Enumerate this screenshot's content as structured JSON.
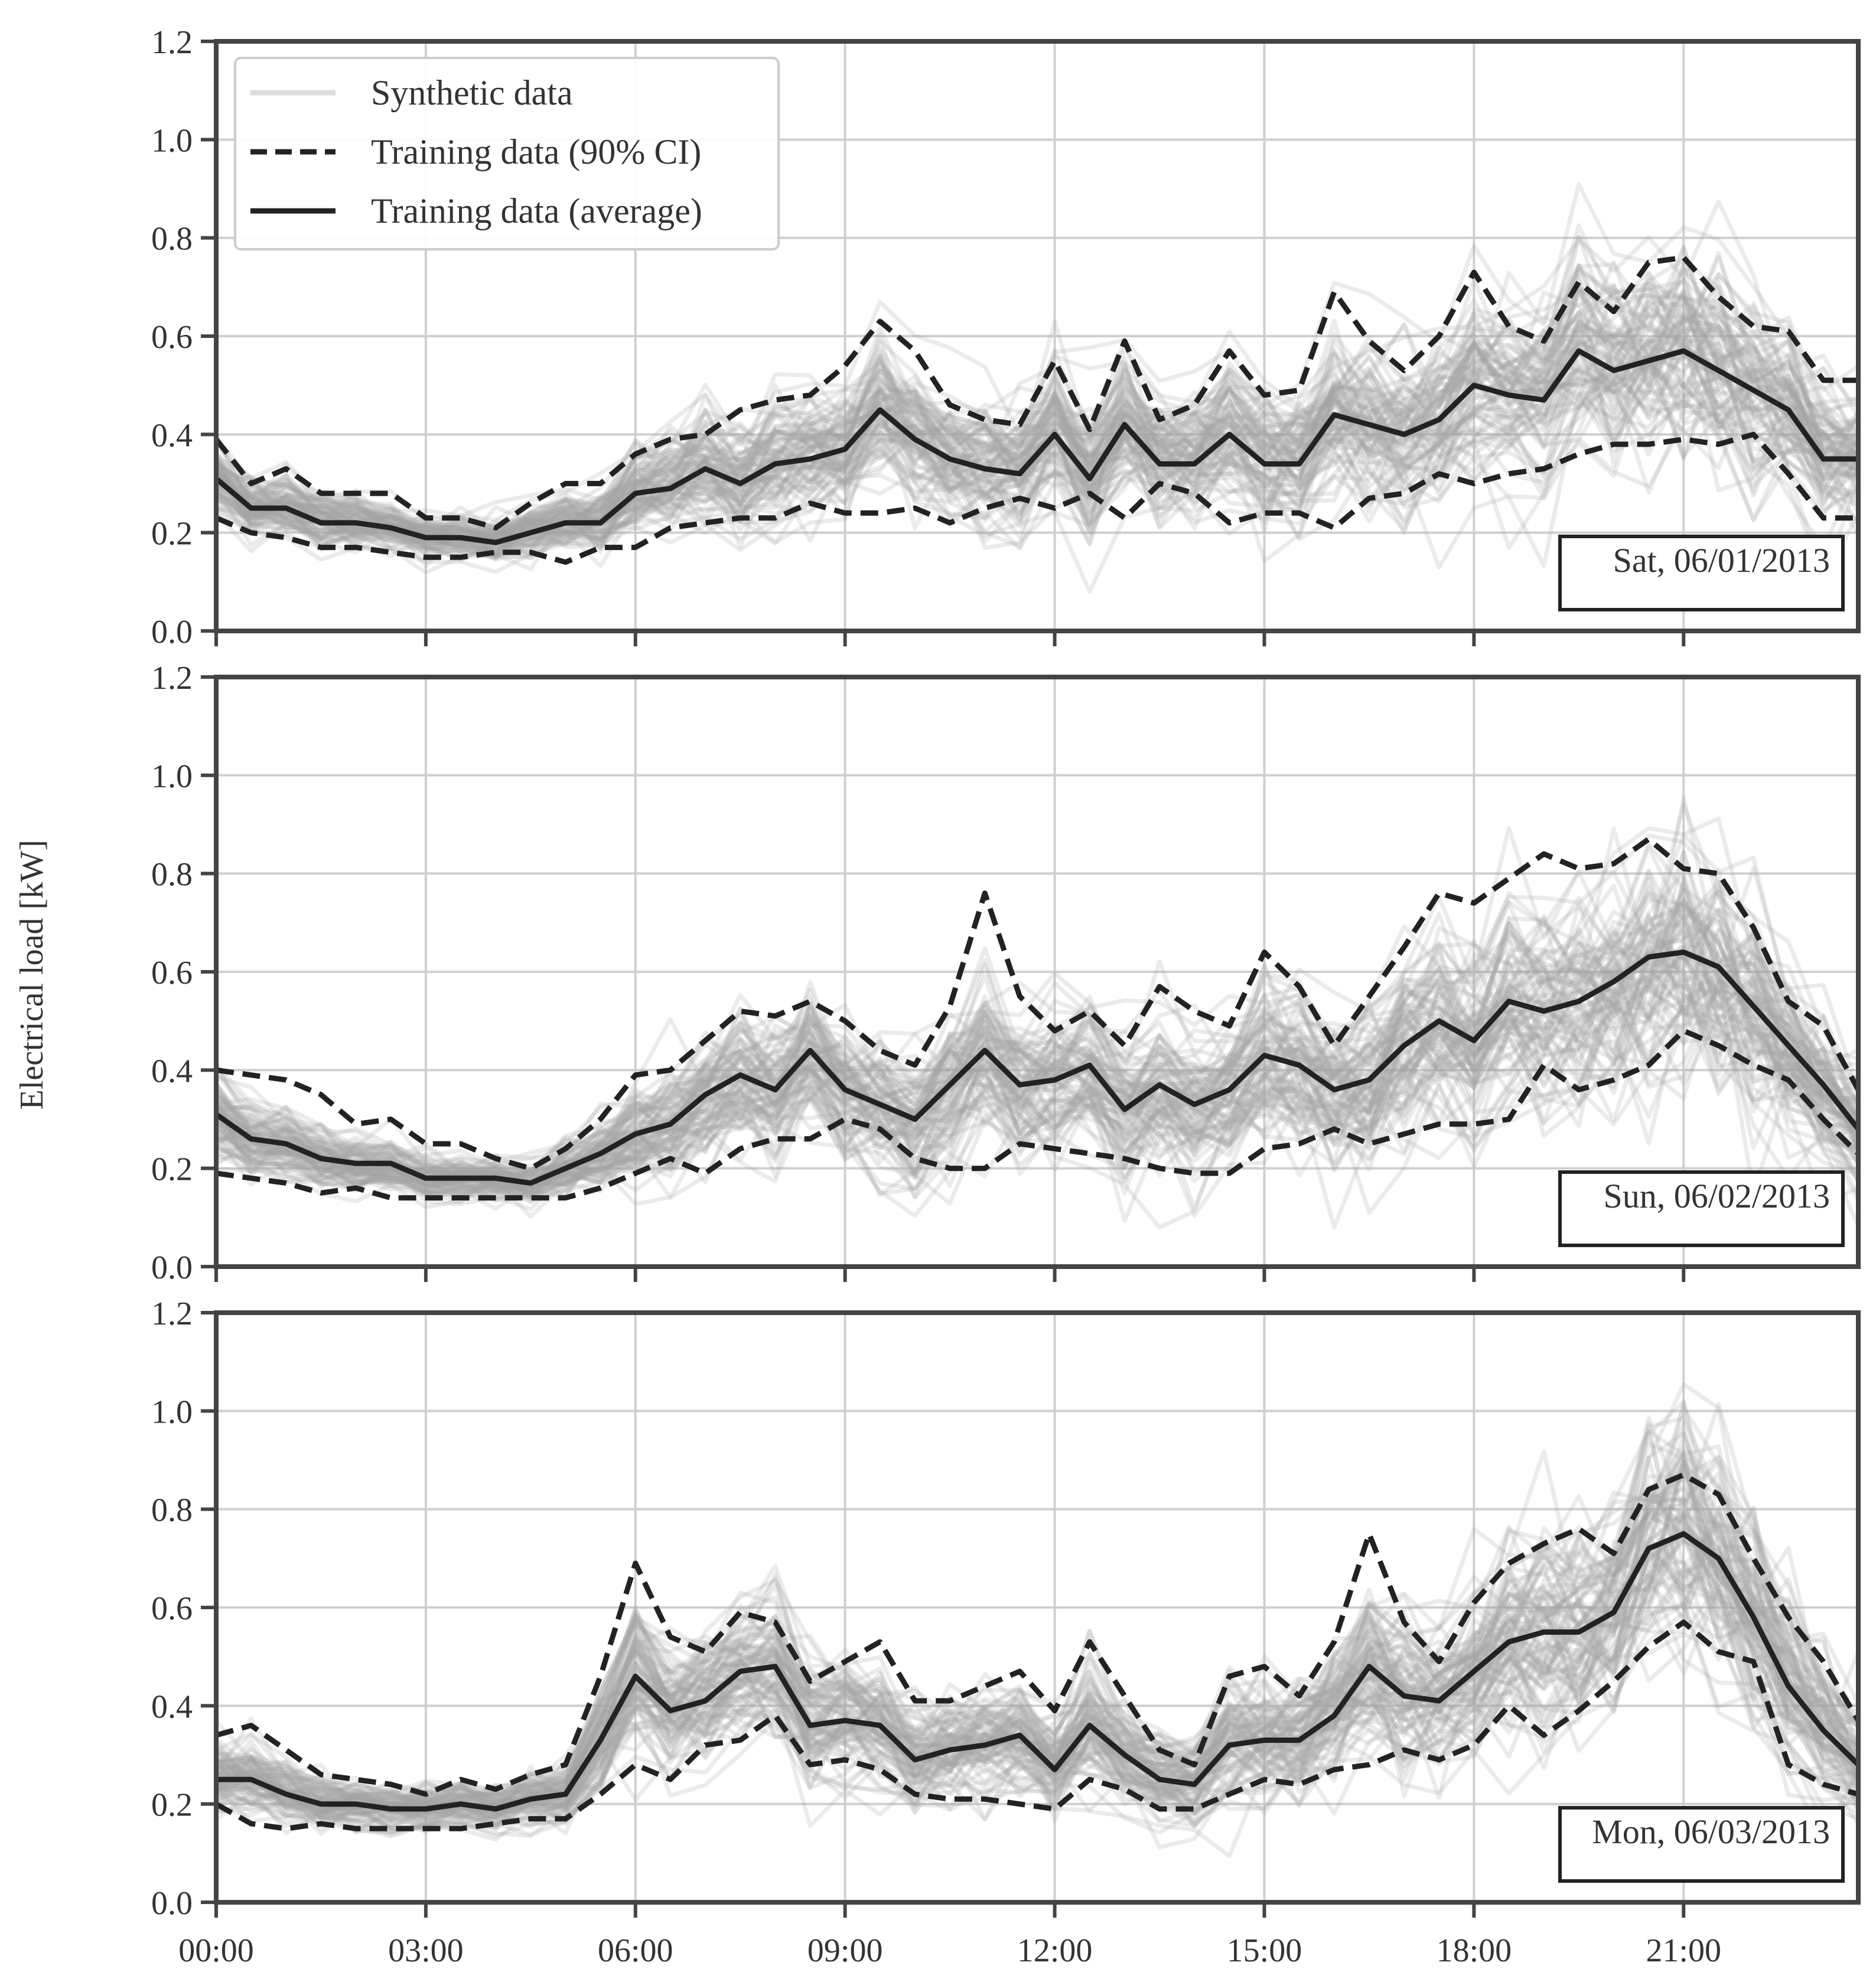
{
  "chart_data": {
    "type": "line",
    "ylabel": "Electrical load [kW]",
    "ylim": [
      0,
      1.2
    ],
    "yticks": [
      "0.0",
      "0.2",
      "0.4",
      "0.6",
      "0.8",
      "1.0",
      "1.2"
    ],
    "xticks": [
      "00:00",
      "03:00",
      "06:00",
      "09:00",
      "12:00",
      "15:00",
      "18:00",
      "21:00"
    ],
    "xlim_hours": [
      0,
      23.5
    ],
    "step_hours": 0.5,
    "legend": {
      "placement": "top-left",
      "entries": [
        {
          "label": "Synthetic data",
          "style": "light-gray-solid"
        },
        {
          "label": "Training data (90% CI)",
          "style": "black-dashed"
        },
        {
          "label": "Training data (average)",
          "style": "black-solid"
        }
      ]
    },
    "colors": {
      "synthetic": "#a3a3a3",
      "training": "#222222",
      "grid": "#cfcfcf",
      "frame": "#444444"
    },
    "panels": [
      {
        "date_label": "Sat, 06/01/2013",
        "average": [
          0.31,
          0.25,
          0.25,
          0.22,
          0.22,
          0.21,
          0.19,
          0.19,
          0.18,
          0.2,
          0.22,
          0.22,
          0.28,
          0.29,
          0.33,
          0.3,
          0.34,
          0.35,
          0.37,
          0.45,
          0.39,
          0.35,
          0.33,
          0.32,
          0.4,
          0.31,
          0.42,
          0.34,
          0.34,
          0.4,
          0.34,
          0.34,
          0.44,
          0.42,
          0.4,
          0.43,
          0.5,
          0.48,
          0.47,
          0.57,
          0.53,
          0.55,
          0.57,
          0.53,
          0.49,
          0.45,
          0.35,
          0.35
        ],
        "ci_upper": [
          0.39,
          0.3,
          0.33,
          0.28,
          0.28,
          0.28,
          0.23,
          0.23,
          0.21,
          0.26,
          0.3,
          0.3,
          0.36,
          0.39,
          0.4,
          0.45,
          0.47,
          0.48,
          0.54,
          0.63,
          0.57,
          0.46,
          0.43,
          0.42,
          0.55,
          0.41,
          0.59,
          0.43,
          0.46,
          0.57,
          0.48,
          0.49,
          0.69,
          0.59,
          0.53,
          0.6,
          0.73,
          0.62,
          0.59,
          0.71,
          0.65,
          0.75,
          0.76,
          0.68,
          0.62,
          0.61,
          0.51,
          0.51
        ],
        "ci_lower": [
          0.23,
          0.2,
          0.19,
          0.17,
          0.17,
          0.16,
          0.15,
          0.15,
          0.16,
          0.16,
          0.14,
          0.17,
          0.17,
          0.21,
          0.22,
          0.23,
          0.23,
          0.26,
          0.24,
          0.24,
          0.25,
          0.22,
          0.25,
          0.27,
          0.25,
          0.28,
          0.23,
          0.3,
          0.28,
          0.22,
          0.24,
          0.24,
          0.21,
          0.27,
          0.28,
          0.32,
          0.3,
          0.32,
          0.33,
          0.36,
          0.38,
          0.38,
          0.39,
          0.38,
          0.4,
          0.32,
          0.23,
          0.23
        ],
        "spread": [
          0.05,
          0.04,
          0.04,
          0.035,
          0.035,
          0.03,
          0.03,
          0.03,
          0.03,
          0.035,
          0.04,
          0.045,
          0.06,
          0.07,
          0.08,
          0.08,
          0.085,
          0.09,
          0.09,
          0.1,
          0.09,
          0.09,
          0.09,
          0.09,
          0.1,
          0.09,
          0.1,
          0.09,
          0.09,
          0.1,
          0.09,
          0.09,
          0.1,
          0.1,
          0.1,
          0.11,
          0.12,
          0.12,
          0.12,
          0.13,
          0.13,
          0.13,
          0.14,
          0.13,
          0.12,
          0.11,
          0.09,
          0.08
        ]
      },
      {
        "date_label": "Sun, 06/02/2013",
        "average": [
          0.31,
          0.26,
          0.25,
          0.22,
          0.21,
          0.21,
          0.18,
          0.18,
          0.18,
          0.17,
          0.2,
          0.23,
          0.27,
          0.29,
          0.35,
          0.39,
          0.36,
          0.44,
          0.36,
          0.33,
          0.3,
          0.37,
          0.44,
          0.37,
          0.38,
          0.41,
          0.32,
          0.37,
          0.33,
          0.36,
          0.43,
          0.41,
          0.36,
          0.38,
          0.45,
          0.5,
          0.46,
          0.54,
          0.52,
          0.54,
          0.58,
          0.63,
          0.64,
          0.61,
          0.53,
          0.45,
          0.37,
          0.28
        ],
        "ci_upper": [
          0.4,
          0.39,
          0.38,
          0.35,
          0.29,
          0.3,
          0.25,
          0.25,
          0.22,
          0.2,
          0.24,
          0.3,
          0.39,
          0.4,
          0.46,
          0.52,
          0.51,
          0.54,
          0.5,
          0.44,
          0.41,
          0.53,
          0.76,
          0.55,
          0.48,
          0.52,
          0.45,
          0.57,
          0.52,
          0.49,
          0.64,
          0.57,
          0.45,
          0.55,
          0.65,
          0.76,
          0.74,
          0.79,
          0.84,
          0.81,
          0.82,
          0.87,
          0.81,
          0.8,
          0.69,
          0.54,
          0.49,
          0.36
        ],
        "ci_lower": [
          0.19,
          0.18,
          0.17,
          0.15,
          0.16,
          0.14,
          0.14,
          0.14,
          0.14,
          0.14,
          0.14,
          0.16,
          0.19,
          0.22,
          0.19,
          0.24,
          0.26,
          0.26,
          0.3,
          0.28,
          0.22,
          0.2,
          0.2,
          0.25,
          0.24,
          0.23,
          0.22,
          0.2,
          0.19,
          0.19,
          0.24,
          0.25,
          0.28,
          0.25,
          0.27,
          0.29,
          0.29,
          0.3,
          0.41,
          0.36,
          0.38,
          0.41,
          0.48,
          0.45,
          0.41,
          0.38,
          0.3,
          0.23
        ],
        "spread": [
          0.06,
          0.05,
          0.045,
          0.04,
          0.035,
          0.035,
          0.03,
          0.03,
          0.03,
          0.03,
          0.035,
          0.045,
          0.06,
          0.07,
          0.08,
          0.09,
          0.09,
          0.1,
          0.09,
          0.09,
          0.09,
          0.1,
          0.11,
          0.1,
          0.1,
          0.1,
          0.1,
          0.1,
          0.1,
          0.1,
          0.11,
          0.11,
          0.1,
          0.11,
          0.12,
          0.13,
          0.13,
          0.14,
          0.14,
          0.14,
          0.15,
          0.16,
          0.16,
          0.15,
          0.14,
          0.12,
          0.1,
          0.08
        ]
      },
      {
        "date_label": "Mon, 06/03/2013",
        "average": [
          0.25,
          0.25,
          0.22,
          0.2,
          0.2,
          0.19,
          0.19,
          0.2,
          0.19,
          0.21,
          0.22,
          0.33,
          0.46,
          0.39,
          0.41,
          0.47,
          0.48,
          0.36,
          0.37,
          0.36,
          0.29,
          0.31,
          0.32,
          0.34,
          0.27,
          0.36,
          0.3,
          0.25,
          0.24,
          0.32,
          0.33,
          0.33,
          0.38,
          0.48,
          0.42,
          0.41,
          0.47,
          0.53,
          0.55,
          0.55,
          0.59,
          0.72,
          0.75,
          0.7,
          0.58,
          0.44,
          0.35,
          0.28
        ],
        "ci_upper": [
          0.34,
          0.36,
          0.31,
          0.26,
          0.25,
          0.24,
          0.22,
          0.25,
          0.23,
          0.26,
          0.28,
          0.46,
          0.69,
          0.54,
          0.51,
          0.59,
          0.57,
          0.45,
          0.49,
          0.53,
          0.41,
          0.41,
          0.44,
          0.47,
          0.39,
          0.53,
          0.42,
          0.31,
          0.28,
          0.46,
          0.48,
          0.42,
          0.53,
          0.75,
          0.57,
          0.49,
          0.61,
          0.69,
          0.73,
          0.76,
          0.71,
          0.84,
          0.87,
          0.83,
          0.7,
          0.58,
          0.49,
          0.37
        ],
        "ci_lower": [
          0.2,
          0.16,
          0.15,
          0.16,
          0.15,
          0.15,
          0.15,
          0.15,
          0.16,
          0.17,
          0.17,
          0.22,
          0.28,
          0.25,
          0.32,
          0.33,
          0.38,
          0.28,
          0.29,
          0.27,
          0.22,
          0.21,
          0.21,
          0.2,
          0.19,
          0.25,
          0.23,
          0.19,
          0.19,
          0.22,
          0.25,
          0.24,
          0.27,
          0.28,
          0.31,
          0.29,
          0.32,
          0.4,
          0.34,
          0.39,
          0.45,
          0.52,
          0.57,
          0.51,
          0.49,
          0.28,
          0.24,
          0.22
        ],
        "spread": [
          0.05,
          0.05,
          0.04,
          0.035,
          0.03,
          0.03,
          0.03,
          0.03,
          0.03,
          0.035,
          0.04,
          0.07,
          0.1,
          0.09,
          0.09,
          0.1,
          0.1,
          0.08,
          0.08,
          0.08,
          0.07,
          0.07,
          0.07,
          0.07,
          0.07,
          0.08,
          0.07,
          0.06,
          0.06,
          0.08,
          0.08,
          0.08,
          0.09,
          0.1,
          0.1,
          0.1,
          0.11,
          0.13,
          0.14,
          0.14,
          0.14,
          0.15,
          0.16,
          0.15,
          0.14,
          0.12,
          0.1,
          0.08
        ]
      }
    ]
  }
}
